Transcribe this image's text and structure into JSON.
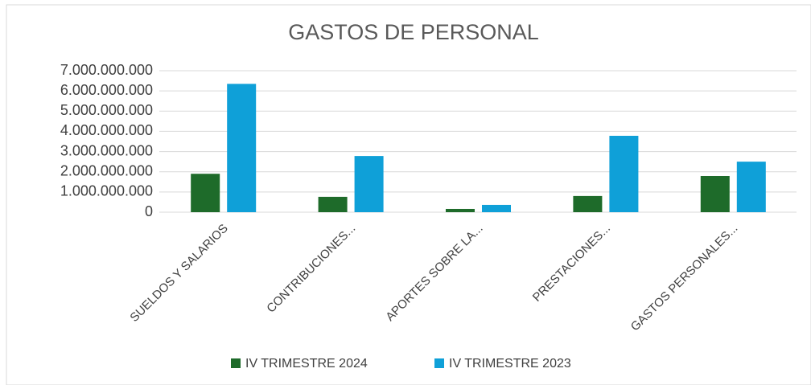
{
  "chart_data": {
    "type": "bar",
    "title": "GASTOS DE PERSONAL",
    "categories": [
      "SUELDOS Y SALARIOS",
      "CONTRIBUCIONES...",
      "APORTES SOBRE LA...",
      "PRESTACIONES...",
      "GASTOS PERSONALES..."
    ],
    "series": [
      {
        "name": "IV TRIMESTRE 2024",
        "color": "#1e6b2a",
        "values": [
          1900000000,
          760000000,
          160000000,
          800000000,
          1790000000
        ]
      },
      {
        "name": "IV TRIMESTRE 2023",
        "color": "#0fa0d8",
        "values": [
          6350000000,
          2780000000,
          360000000,
          3780000000,
          2500000000
        ]
      }
    ],
    "ylim": [
      0,
      7000000000
    ],
    "yticks": [
      0,
      {
        "value": 1000000000,
        "label": "1.000.000.000"
      },
      {
        "value": 2000000000,
        "label": "2.000.000.000"
      },
      {
        "value": 3000000000,
        "label": "3.000.000.000"
      },
      {
        "value": 4000000000,
        "label": "4.000.000.000"
      },
      {
        "value": 5000000000,
        "label": "5.000.000.000"
      },
      {
        "value": 6000000000,
        "label": "6.000.000.000"
      },
      {
        "value": 7000000000,
        "label": "7.000.000.000"
      }
    ],
    "grid": true,
    "legend": "bottom"
  }
}
